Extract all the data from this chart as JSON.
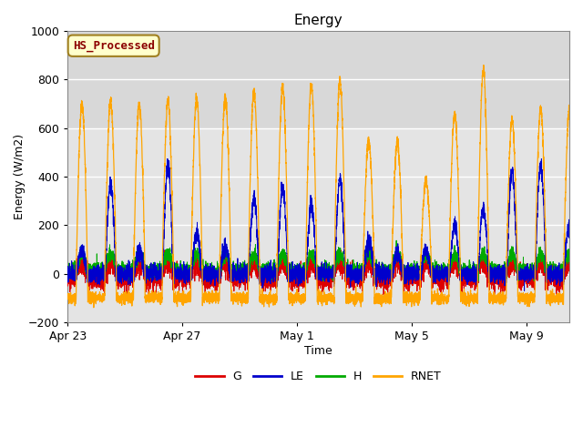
{
  "title": "Energy",
  "xlabel": "Time",
  "ylabel": "Energy (W/m2)",
  "ylim": [
    -200,
    1000
  ],
  "xlim_start": 0,
  "xlim_end": 17.5,
  "annotation_text": "HS_Processed",
  "annotation_color": "#8B0000",
  "annotation_bg": "#FFFFCC",
  "annotation_border": "#A08020",
  "colors": {
    "G": "#DD0000",
    "LE": "#0000CC",
    "H": "#00AA00",
    "RNET": "#FFA500"
  },
  "bg_plot": "#E8E8E8",
  "bg_upper": "#DCDCDC",
  "bg_lower": "#E8E8E8",
  "bg_outer": "#FFFFFF",
  "grid_color": "#FFFFFF",
  "yticks": [
    -200,
    0,
    200,
    400,
    600,
    800,
    1000
  ],
  "xtick_labels": [
    "Apr 23",
    "Apr 27",
    "May 1",
    "May 5",
    "May 9"
  ],
  "xtick_positions": [
    0,
    4,
    8,
    12,
    16
  ],
  "num_days": 18,
  "seed": 42,
  "figsize": [
    6.4,
    4.8
  ],
  "dpi": 100
}
